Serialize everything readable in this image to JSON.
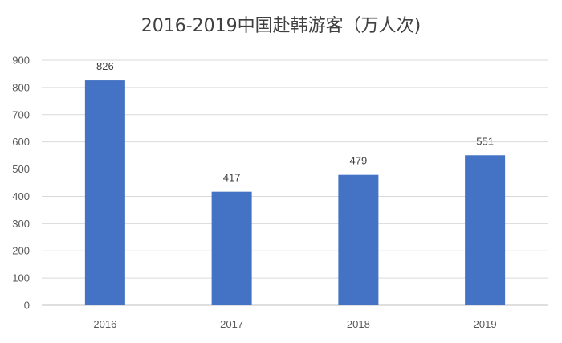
{
  "chart_data": {
    "type": "bar",
    "title": "2016-2019中国赴韩游客（万人次)",
    "xlabel": "",
    "ylabel": "",
    "categories": [
      "2016",
      "2017",
      "2018",
      "2019"
    ],
    "values": [
      826,
      417,
      479,
      551
    ],
    "ylim": [
      0,
      900
    ],
    "yticks": [
      0,
      100,
      200,
      300,
      400,
      500,
      600,
      700,
      800,
      900
    ],
    "grid": true,
    "legend": "none",
    "bar_color": "#4472c4",
    "data_labels": true
  }
}
